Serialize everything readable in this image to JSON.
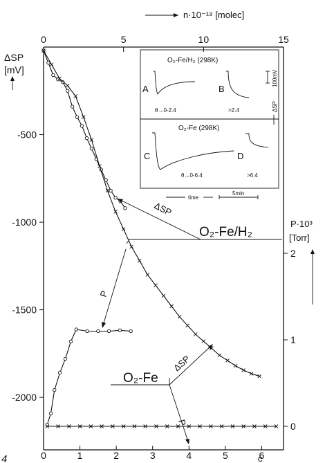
{
  "chart_data": {
    "type": "line",
    "top_axis": {
      "label": "n·10⁻¹⁸ [molec]",
      "range": [
        0,
        15
      ],
      "ticks": [
        "0",
        "5",
        "10",
        "15"
      ]
    },
    "left_axis": {
      "label_line1": "ΔSP",
      "label_line2": "[mV]",
      "range": [
        -2300,
        0
      ],
      "ticks": [
        "-500",
        "-1000",
        "-1500",
        "-2000"
      ]
    },
    "right_axis": {
      "label_line1": "P·10³",
      "label_line2": "[Torr]",
      "range": [
        0,
        2.25
      ],
      "ticks": [
        "0",
        "1",
        "2"
      ]
    },
    "bottom_axis": {
      "range": [
        0,
        6.6
      ],
      "ticks": [
        "0",
        "1",
        "2",
        "3",
        "4",
        "5",
        "6"
      ]
    },
    "series": [
      {
        "key": "sp_fe_h2",
        "marker": "circle",
        "axis": "top-left",
        "x": [
          0,
          0.3,
          0.6,
          0.9,
          1.2,
          1.5,
          1.8,
          2.1,
          2.4,
          2.7,
          3.0,
          3.3,
          3.6,
          3.9,
          4.2,
          4.5,
          4.8,
          5.1
        ],
        "y": [
          -20,
          -90,
          -160,
          -185,
          -200,
          -250,
          -340,
          -400,
          -450,
          -520,
          -580,
          -640,
          -700,
          -760,
          -820,
          -860,
          -880,
          -920
        ]
      },
      {
        "key": "sp_fe",
        "marker": "cross",
        "axis": "top-left",
        "x": [
          0,
          0.5,
          1.0,
          1.5,
          2.0,
          2.5,
          3.0,
          3.5,
          4.0,
          4.5,
          5.0,
          5.5,
          6.0,
          6.5,
          7.0,
          7.5,
          8.0,
          8.5,
          9.0,
          9.5,
          10.0,
          10.5,
          11.0,
          11.5,
          12.0,
          12.5,
          13.0,
          13.5
        ],
        "y": [
          -20,
          -100,
          -180,
          -220,
          -280,
          -400,
          -530,
          -680,
          -820,
          -940,
          -1040,
          -1140,
          -1220,
          -1300,
          -1360,
          -1420,
          -1480,
          -1540,
          -1590,
          -1640,
          -1680,
          -1720,
          -1760,
          -1790,
          -1820,
          -1845,
          -1865,
          -1880
        ]
      },
      {
        "key": "p_fe_h2",
        "marker": "circle",
        "axis": "bottom-right",
        "x": [
          0.1,
          0.2,
          0.3,
          0.45,
          0.6,
          0.75,
          0.9,
          1.2,
          1.5,
          1.8,
          2.1,
          2.4
        ],
        "y": [
          0.02,
          0.15,
          0.42,
          0.62,
          0.78,
          0.98,
          1.12,
          1.1,
          1.1,
          1.1,
          1.11,
          1.1
        ]
      },
      {
        "key": "p_fe",
        "marker": "cross",
        "axis": "bottom-right",
        "x": [
          0.1,
          0.4,
          0.7,
          1.0,
          1.3,
          1.6,
          1.9,
          2.2,
          2.5,
          2.8,
          3.1,
          3.4,
          3.7,
          4.0,
          4.3,
          4.6,
          4.9,
          5.2,
          5.5,
          5.8,
          6.1,
          6.4
        ],
        "y": [
          0,
          0,
          0,
          0,
          0,
          0,
          0,
          0,
          0,
          0,
          0,
          0,
          0,
          0,
          0,
          0,
          0,
          0,
          0,
          0,
          0,
          0
        ]
      }
    ],
    "annotations": {
      "label_fe_h2": "O₂-Fe/H₂",
      "label_fe": "O₂-Fe",
      "dsp_upper": "ΔSP",
      "p_upper": "P",
      "dsp_lower": "ΔSP",
      "p_lower": "P",
      "corner_left": "4",
      "corner_right": "c"
    },
    "inset": {
      "title_top": "O₂-Fe/H₂ (298K)",
      "title_bottom": "O₂-Fe (298K)",
      "A": "A",
      "B": "B",
      "C": "C",
      "D": "D",
      "theta_A": "θ→0-2.4",
      "theta_B": ">2.4",
      "theta_C": "θ→0-6.4",
      "theta_D": ">6.4",
      "scale_mv": "100mV",
      "scale_axis": "ΔSP",
      "time_label": "time",
      "time_scale": "5min"
    }
  }
}
